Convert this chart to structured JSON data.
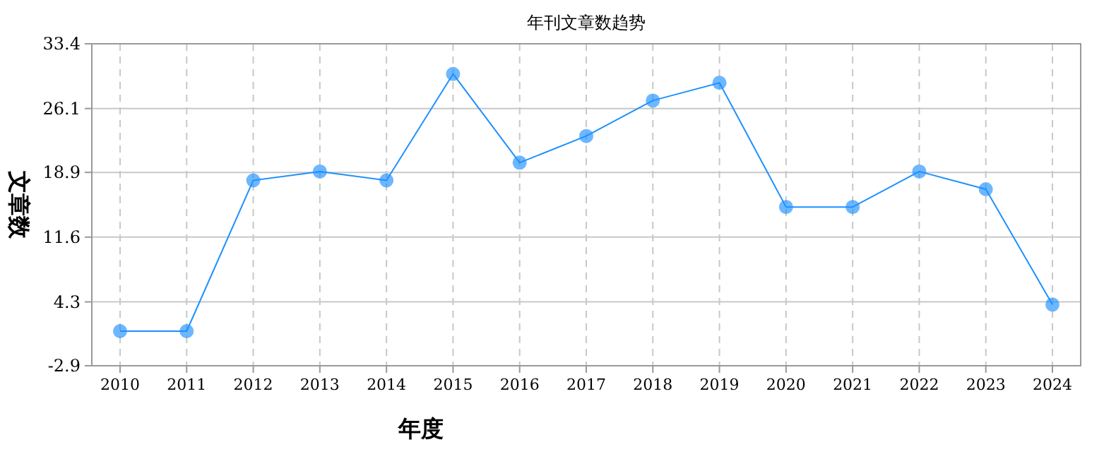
{
  "chart_data": {
    "type": "line",
    "title": "年刊文章数趋势",
    "xlabel": "年度",
    "ylabel": "文章数",
    "categories": [
      "2010",
      "2011",
      "2012",
      "2013",
      "2014",
      "2015",
      "2016",
      "2017",
      "2018",
      "2019",
      "2020",
      "2021",
      "2022",
      "2023",
      "2024"
    ],
    "series": [
      {
        "color": "#1e90ff",
        "values": [
          1,
          1,
          18,
          19,
          18,
          30,
          20,
          23,
          27,
          29,
          15,
          15,
          19,
          17,
          4
        ]
      }
    ],
    "ylim": [
      -2.9,
      33.4
    ],
    "yticks": [
      -2.9,
      4.3,
      11.6,
      18.9,
      26.1,
      33.4
    ],
    "grid": true,
    "marker": "circle",
    "line_style": "solid"
  }
}
